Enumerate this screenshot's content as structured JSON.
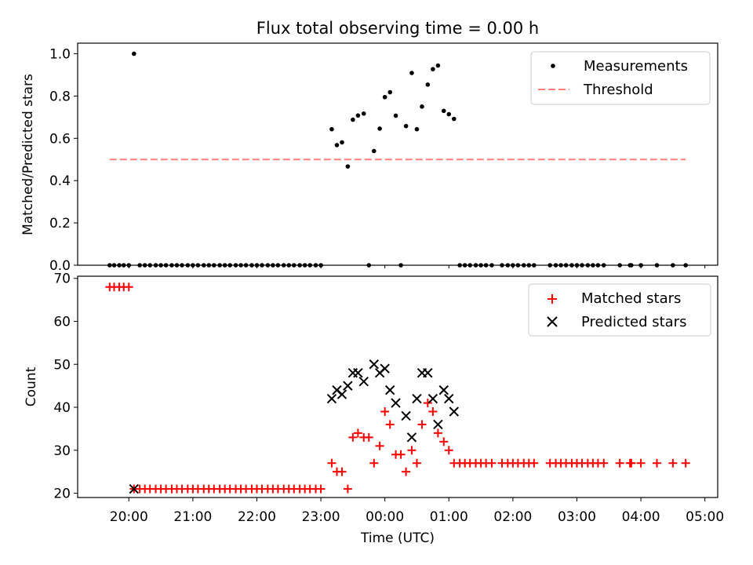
{
  "figure": {
    "title": "Flux total observing time = 0.00 h",
    "x_label": "Time (UTC)",
    "x_tick_labels": [
      "20:00",
      "21:00",
      "22:00",
      "23:00",
      "00:00",
      "01:00",
      "02:00",
      "03:00",
      "04:00",
      "05:00"
    ]
  },
  "colors": {
    "matched": "#ff0000",
    "predicted": "#000000",
    "measurements": "#000000",
    "threshold": "#ff7f7f"
  },
  "chart_data": [
    {
      "type": "scatter",
      "ylabel": "Matched/Predicted stars",
      "ylim": [
        0,
        1.05
      ],
      "yticks": [
        "0.0",
        "0.2",
        "0.4",
        "0.6",
        "0.8",
        "1.0"
      ],
      "xlim_hours": [
        19.2,
        29.2
      ],
      "legend_position": "top-right",
      "legend": [
        "Measurements",
        "Threshold"
      ],
      "threshold": {
        "x": [
          19.7,
          28.7
        ],
        "y": 0.5
      },
      "series": [
        {
          "name": "Measurements",
          "x": [
            19.7,
            19.77,
            19.85,
            19.92,
            20.0,
            20.08,
            20.17,
            20.25,
            20.33,
            20.42,
            20.5,
            20.58,
            20.67,
            20.75,
            20.83,
            20.92,
            21.0,
            21.08,
            21.17,
            21.25,
            21.33,
            21.42,
            21.5,
            21.58,
            21.67,
            21.75,
            21.83,
            21.92,
            22.0,
            22.08,
            22.17,
            22.25,
            22.33,
            22.42,
            22.5,
            22.58,
            22.67,
            22.75,
            22.83,
            22.92,
            23.0,
            23.17,
            23.25,
            23.33,
            23.42,
            23.5,
            23.58,
            23.67,
            23.75,
            23.83,
            23.92,
            24.0,
            24.08,
            24.17,
            24.25,
            24.33,
            24.42,
            24.5,
            24.58,
            24.67,
            24.75,
            24.83,
            24.92,
            25.0,
            25.08,
            25.17,
            25.25,
            25.33,
            25.42,
            25.5,
            25.58,
            25.67,
            25.83,
            25.92,
            26.0,
            26.08,
            26.17,
            26.25,
            26.33,
            26.58,
            26.67,
            26.75,
            26.83,
            26.92,
            27.0,
            27.08,
            27.17,
            27.25,
            27.33,
            27.42,
            27.67,
            27.83,
            27.85,
            28.0,
            28.25,
            28.5,
            28.7
          ],
          "y": [
            0,
            0,
            0,
            0,
            0,
            1.0,
            0,
            0,
            0,
            0,
            0,
            0,
            0,
            0,
            0,
            0,
            0,
            0,
            0,
            0,
            0,
            0,
            0,
            0,
            0,
            0,
            0,
            0,
            0,
            0,
            0,
            0,
            0,
            0,
            0,
            0,
            0,
            0,
            0,
            0,
            0,
            0.643,
            0.568,
            0.581,
            0.467,
            0.688,
            0.708,
            0.717,
            0,
            0.54,
            0.646,
            0.795,
            0.818,
            0.707,
            0,
            0.658,
            0.909,
            0.643,
            0.75,
            0.854,
            0.927,
            0.944,
            0.73,
            0.714,
            0.692,
            0,
            0,
            0,
            0,
            0,
            0,
            0,
            0,
            0,
            0,
            0,
            0,
            0,
            0,
            0,
            0,
            0,
            0,
            0,
            0,
            0,
            0,
            0,
            0,
            0,
            0,
            0,
            0,
            0,
            0,
            0,
            0
          ]
        }
      ]
    },
    {
      "type": "scatter",
      "ylabel": "Count",
      "ylim": [
        19,
        70.5
      ],
      "yticks": [
        "20",
        "30",
        "40",
        "50",
        "60",
        "70"
      ],
      "xlim_hours": [
        19.2,
        29.2
      ],
      "legend_position": "top-right",
      "series": [
        {
          "name": "Matched stars",
          "marker": "+",
          "x": [
            19.7,
            19.77,
            19.85,
            19.92,
            20.0,
            20.08,
            20.17,
            20.25,
            20.33,
            20.42,
            20.5,
            20.58,
            20.67,
            20.75,
            20.83,
            20.92,
            21.0,
            21.08,
            21.17,
            21.25,
            21.33,
            21.42,
            21.5,
            21.58,
            21.67,
            21.75,
            21.83,
            21.92,
            22.0,
            22.08,
            22.17,
            22.25,
            22.33,
            22.42,
            22.5,
            22.58,
            22.67,
            22.75,
            22.83,
            22.92,
            23.0,
            23.17,
            23.25,
            23.33,
            23.42,
            23.5,
            23.58,
            23.67,
            23.75,
            23.83,
            23.92,
            24.0,
            24.08,
            24.17,
            24.25,
            24.33,
            24.42,
            24.5,
            24.58,
            24.67,
            24.75,
            24.83,
            24.92,
            25.0,
            25.08,
            25.17,
            25.25,
            25.33,
            25.42,
            25.5,
            25.58,
            25.67,
            25.83,
            25.92,
            26.0,
            26.08,
            26.17,
            26.25,
            26.33,
            26.58,
            26.67,
            26.75,
            26.83,
            26.92,
            27.0,
            27.08,
            27.17,
            27.25,
            27.33,
            27.42,
            27.67,
            27.83,
            27.85,
            28.0,
            28.25,
            28.5,
            28.7
          ],
          "y": [
            68,
            68,
            68,
            68,
            68,
            21,
            21,
            21,
            21,
            21,
            21,
            21,
            21,
            21,
            21,
            21,
            21,
            21,
            21,
            21,
            21,
            21,
            21,
            21,
            21,
            21,
            21,
            21,
            21,
            21,
            21,
            21,
            21,
            21,
            21,
            21,
            21,
            21,
            21,
            21,
            21,
            27,
            25,
            25,
            21,
            33,
            34,
            33,
            33,
            27,
            31,
            39,
            36,
            29,
            29,
            25,
            30,
            27,
            36,
            41,
            39,
            34,
            32,
            30,
            27,
            27,
            27,
            27,
            27,
            27,
            27,
            27,
            27,
            27,
            27,
            27,
            27,
            27,
            27,
            27,
            27,
            27,
            27,
            27,
            27,
            27,
            27,
            27,
            27,
            27,
            27,
            27,
            27,
            27,
            27,
            27,
            27
          ]
        },
        {
          "name": "Predicted stars",
          "marker": "x",
          "x": [
            20.08,
            23.17,
            23.25,
            23.33,
            23.42,
            23.5,
            23.58,
            23.67,
            23.83,
            23.92,
            24.0,
            24.08,
            24.17,
            24.33,
            24.42,
            24.5,
            24.58,
            24.67,
            24.75,
            24.83,
            24.92,
            25.0,
            25.08
          ],
          "y": [
            21,
            42,
            44,
            43,
            45,
            48,
            48,
            46,
            50,
            48,
            49,
            44,
            41,
            38,
            33,
            42,
            48,
            48,
            42,
            36,
            44,
            42,
            39
          ]
        }
      ]
    }
  ]
}
